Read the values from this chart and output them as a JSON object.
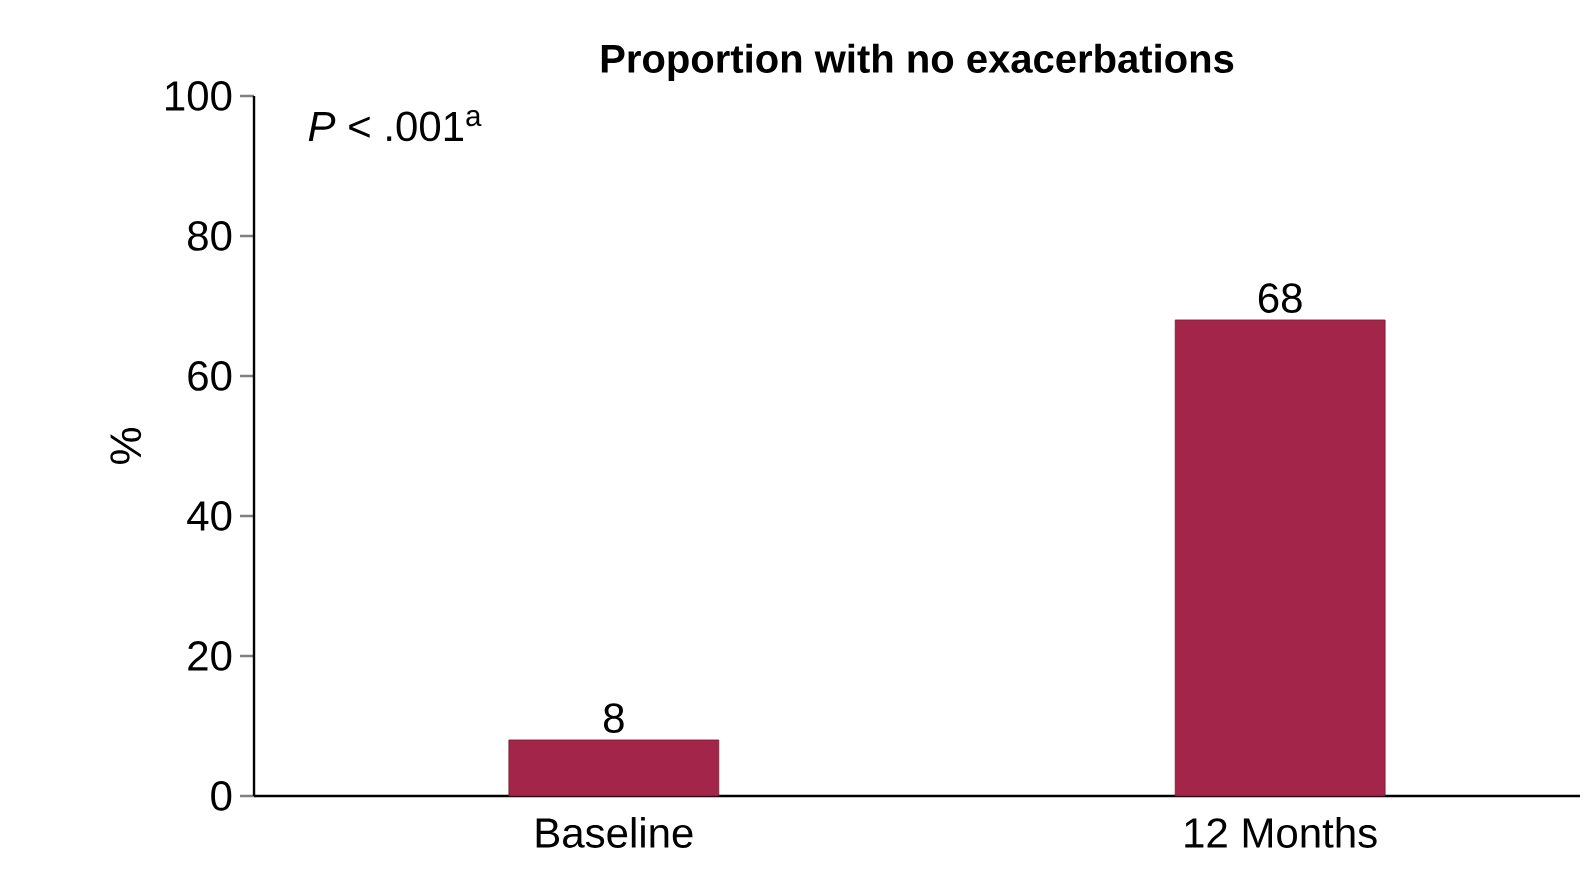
{
  "chart_data": {
    "type": "bar",
    "title": "Proportion with no exacerbations",
    "ylabel": "%",
    "categories": [
      "Baseline",
      "12 Months"
    ],
    "values": [
      8,
      68
    ],
    "color": "#a3264a",
    "ylim": [
      0,
      100
    ],
    "yticks": [
      0,
      20,
      40,
      60,
      80,
      100
    ],
    "data_labels": true,
    "annotations": [
      "*P* < .001$^{a}$"
    ]
  }
}
